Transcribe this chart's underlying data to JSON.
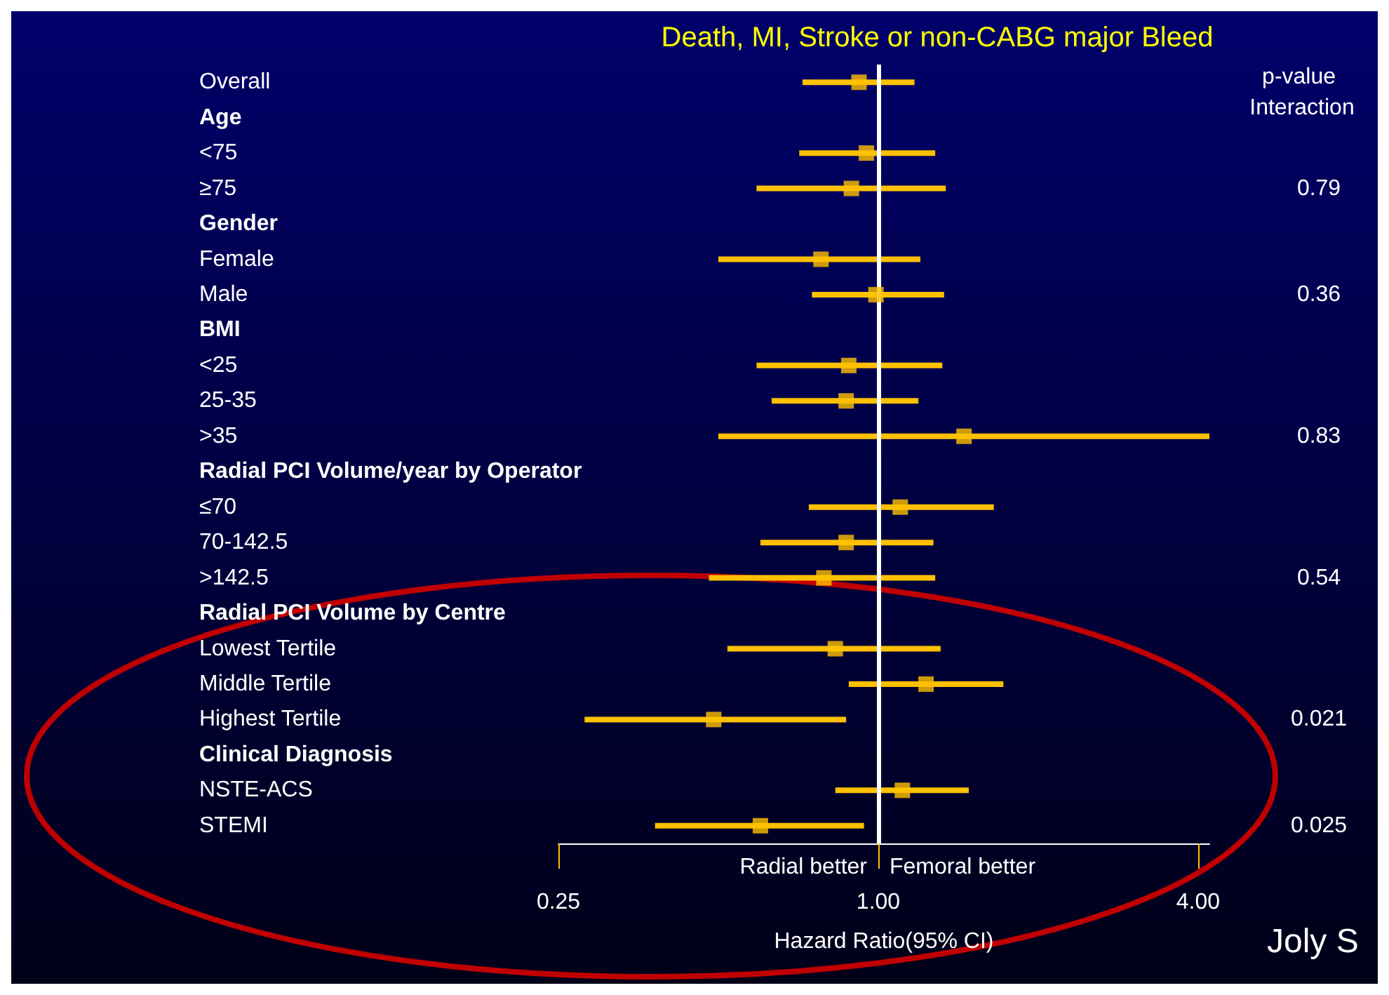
{
  "chart_data": {
    "type": "scatter",
    "orientation": "horizontal",
    "title": "Death, MI, Stroke or non-CABG major Bleed",
    "xlabel": "Hazard Ratio(95% CI)",
    "categories": [
      "Overall",
      "Age",
      "<75",
      "≥75",
      "Gender",
      "Female",
      "Male",
      "BMI",
      "<25",
      "25-35",
      ">35",
      "Radial PCI Volume/year by Operator",
      "≤70",
      "70-142.5",
      ">142.5",
      "Radial PCI Volume by Centre",
      "Lowest Tertile",
      "Middle Tertile",
      "Highest Tertile",
      "Clinical Diagnosis",
      "NSTE-ACS",
      "STEMI"
    ],
    "values": [
      0.92,
      null,
      0.95,
      0.89,
      null,
      0.78,
      0.99,
      null,
      0.88,
      0.87,
      1.45,
      null,
      1.1,
      0.87,
      0.79,
      null,
      0.83,
      1.23,
      0.49,
      null,
      1.11,
      0.6
    ],
    "errors": [
      [
        0.72,
        1.17
      ],
      null,
      [
        0.71,
        1.28
      ],
      [
        0.59,
        1.34
      ],
      null,
      [
        0.5,
        1.2
      ],
      [
        0.75,
        1.33
      ],
      null,
      [
        0.59,
        1.32
      ],
      [
        0.63,
        1.19
      ],
      [
        0.5,
        4.2
      ],
      null,
      [
        0.74,
        1.65
      ],
      [
        0.6,
        1.27
      ],
      [
        0.48,
        1.28
      ],
      null,
      [
        0.52,
        1.31
      ],
      [
        0.88,
        1.72
      ],
      [
        0.28,
        0.87
      ],
      null,
      [
        0.83,
        1.48
      ],
      [
        0.38,
        0.94
      ]
    ],
    "color": "#ffc000",
    "marker": "square",
    "log": "x",
    "xlim": [
      0.25,
      4.2
    ],
    "xticks": [
      0.25,
      {
        "value": 1,
        "label": "1.00"
      },
      {
        "value": 4,
        "label": "4.00"
      }
    ],
    "ref_lines": [
      {
        "axis": "x",
        "value": 1,
        "color": "#ffffff"
      }
    ],
    "grid": false,
    "annotations": [
      "Radial better",
      "Femoral better",
      "p-value Interaction",
      "Joly S",
      "0.79",
      "0.36",
      "0.83",
      "0.54",
      "0.021",
      "0.025"
    ]
  }
}
